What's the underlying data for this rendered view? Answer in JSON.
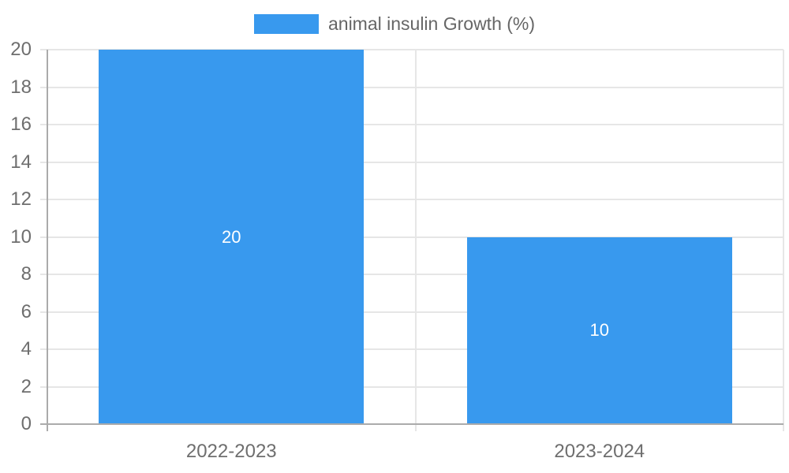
{
  "chart_data": {
    "type": "bar",
    "title": "animal insulin Growth (%)",
    "legend": {
      "label": "animal insulin Growth (%)",
      "position": "top-center"
    },
    "categories": [
      "2022-2023",
      "2023-2024"
    ],
    "series": [
      {
        "name": "animal insulin Growth (%)",
        "values": [
          20,
          10
        ]
      }
    ],
    "bar_value_labels": [
      "20",
      "10"
    ],
    "xlabel": "",
    "ylabel": "",
    "ylim": [
      0,
      20
    ],
    "ytick_step": 2,
    "yticks": [
      0,
      2,
      4,
      6,
      8,
      10,
      12,
      14,
      16,
      18,
      20
    ],
    "grid": true,
    "bar_width_fraction": 0.72,
    "colors": {
      "bar": "#3899EE",
      "bar_label": "#FFFFFF",
      "legend_text": "#666666",
      "axis_text": "#6E6E6E",
      "gridline": "#E6E6E6",
      "axis_line": "#ABABAB",
      "background": "#FFFFFF"
    }
  }
}
